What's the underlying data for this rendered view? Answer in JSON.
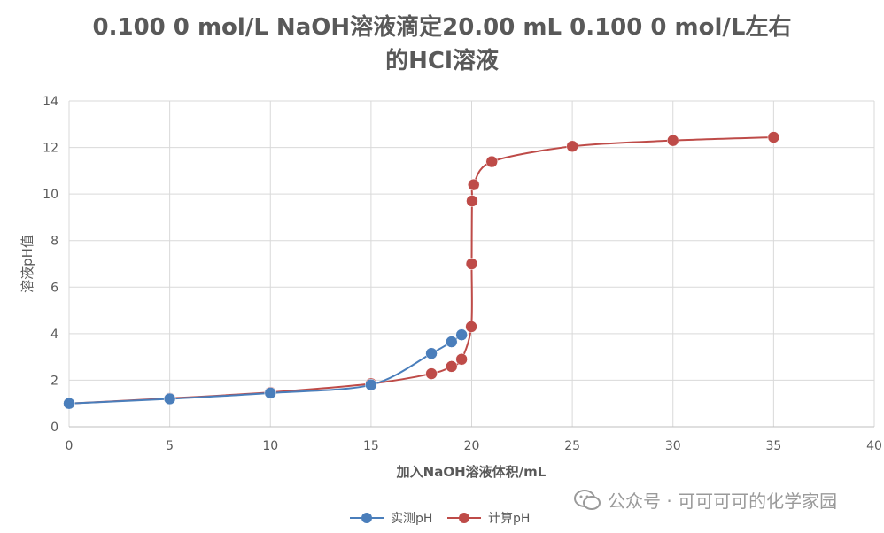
{
  "chart_data": {
    "type": "line",
    "title": "0.100 0 mol/L NaOH溶液滴定20.00 mL 0.100 0 mol/L左右的HCl溶液",
    "title_lines": [
      "0.100 0 mol/L NaOH溶液滴定20.00 mL 0.100 0 mol/L左右",
      "的HCl溶液"
    ],
    "xlabel": "加入NaOH溶液体积/mL",
    "ylabel": "溶液pH值",
    "xlim": [
      0,
      40
    ],
    "ylim": [
      0,
      14
    ],
    "x_ticks": [
      0,
      5,
      10,
      15,
      20,
      25,
      30,
      35,
      40
    ],
    "y_ticks": [
      0,
      2,
      4,
      6,
      8,
      10,
      12,
      14
    ],
    "grid": true,
    "legend_position": "bottom",
    "series": [
      {
        "name": "实测pH",
        "color": "#4a7ebb",
        "points": [
          [
            0,
            1.0
          ],
          [
            5,
            1.2
          ],
          [
            10,
            1.45
          ],
          [
            15,
            1.8
          ],
          [
            18,
            3.15
          ],
          [
            19,
            3.65
          ],
          [
            19.5,
            3.95
          ]
        ]
      },
      {
        "name": "计算pH",
        "color": "#be4b48",
        "points": [
          [
            0,
            1.0
          ],
          [
            5,
            1.22
          ],
          [
            10,
            1.48
          ],
          [
            15,
            1.85
          ],
          [
            18,
            2.28
          ],
          [
            19,
            2.59
          ],
          [
            19.5,
            2.9
          ],
          [
            19.98,
            4.3
          ],
          [
            20.0,
            7.0
          ],
          [
            20.02,
            9.7
          ],
          [
            20.1,
            10.4
          ],
          [
            21,
            11.39
          ],
          [
            25,
            12.05
          ],
          [
            30,
            12.3
          ],
          [
            35,
            12.44
          ]
        ]
      }
    ]
  },
  "watermark": {
    "text": "公众号 · 可可可可的化学家园",
    "icon": "wechat-icon"
  }
}
